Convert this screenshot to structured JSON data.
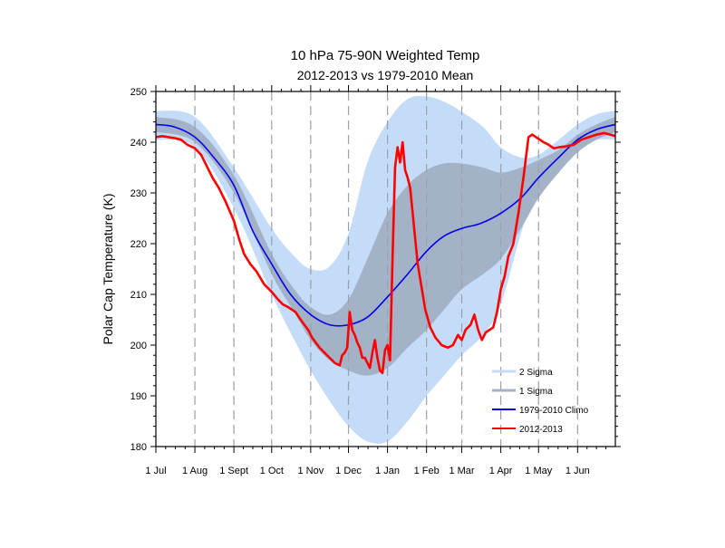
{
  "chart_data": {
    "type": "area",
    "title": "10 hPa 75-90N Weighted Temp",
    "subtitle": "2012-2013 vs 1979-2010 Mean",
    "xlabel": "",
    "ylabel": "Polar Cap Temperature (K)",
    "x_unit": "day of season (0 = 1 Jul)",
    "xlim": [
      0,
      365
    ],
    "ylim": [
      180,
      250
    ],
    "y_ticks": [
      180,
      190,
      200,
      210,
      220,
      230,
      240,
      250
    ],
    "x_ticks": [
      {
        "day": 0,
        "label": "1 Jul"
      },
      {
        "day": 31,
        "label": "1 Aug"
      },
      {
        "day": 62,
        "label": "1 Sept"
      },
      {
        "day": 92,
        "label": "1 Oct"
      },
      {
        "day": 123,
        "label": "1 Nov"
      },
      {
        "day": 153,
        "label": "1 Dec"
      },
      {
        "day": 184,
        "label": "1 Jan"
      },
      {
        "day": 215,
        "label": "1 Feb"
      },
      {
        "day": 243,
        "label": "1 Mar"
      },
      {
        "day": 274,
        "label": "1 Apr"
      },
      {
        "day": 304,
        "label": "1 May"
      },
      {
        "day": 335,
        "label": "1 Jun"
      }
    ],
    "grid": "vertical dashed at month starts",
    "legend_position": "bottom-right",
    "series": [
      {
        "name": "2 Sigma",
        "kind": "band",
        "color": "#c4dcf8",
        "x": [
          0,
          31,
          62,
          92,
          110,
          123,
          138,
          153,
          168,
          184,
          200,
          215,
          229,
          243,
          260,
          274,
          290,
          304,
          320,
          335,
          350,
          365
        ],
        "upper": [
          246.2,
          245,
          235,
          223,
          217.5,
          215,
          215.5,
          222,
          236,
          244,
          248.5,
          249,
          248,
          246,
          243,
          239,
          237,
          237.5,
          240.5,
          243.5,
          245.5,
          246.2
        ],
        "lower": [
          240.5,
          239,
          227,
          210,
          201,
          195,
          189,
          184,
          181,
          181,
          185,
          190,
          194,
          198,
          202,
          208,
          222,
          232,
          236.5,
          239,
          240.5,
          240.5
        ]
      },
      {
        "name": "1 Sigma",
        "kind": "band",
        "color": "#a4b2c8",
        "x": [
          0,
          31,
          62,
          92,
          110,
          123,
          138,
          153,
          168,
          184,
          200,
          215,
          229,
          243,
          260,
          274,
          290,
          304,
          320,
          335,
          350,
          365
        ],
        "upper": [
          245,
          243,
          233.5,
          218,
          211,
          207.5,
          206,
          209,
          217,
          226,
          231.5,
          234.5,
          235.8,
          235.8,
          235,
          234,
          235,
          236.5,
          238.5,
          241.5,
          243.5,
          245
        ],
        "lower": [
          242,
          240,
          230,
          214,
          206.5,
          201,
          197,
          195,
          194,
          195.5,
          199.5,
          203,
          207,
          211,
          214,
          217,
          223,
          229,
          234,
          238,
          240.5,
          242
        ]
      },
      {
        "name": "1979-2010 Climo",
        "kind": "line",
        "color": "#0000ee",
        "x": [
          0,
          15,
          31,
          46,
          62,
          77,
          92,
          107,
          123,
          138,
          153,
          168,
          184,
          200,
          215,
          229,
          243,
          258,
          274,
          290,
          304,
          320,
          335,
          350,
          365
        ],
        "values": [
          243.5,
          243,
          241,
          237,
          231.5,
          222.5,
          216,
          210,
          206,
          204,
          204,
          205.5,
          209.5,
          214,
          218.5,
          221.5,
          223,
          224,
          226,
          229,
          233,
          237,
          240.5,
          242.5,
          243.5
        ]
      },
      {
        "name": "2012-2013",
        "kind": "line",
        "color": "#ff0000",
        "x": [
          0,
          5,
          10,
          15,
          20,
          25,
          31,
          36,
          40,
          45,
          50,
          55,
          62,
          66,
          70,
          75,
          80,
          86,
          92,
          97,
          101,
          105,
          108,
          111,
          115,
          118,
          121,
          124,
          127,
          130,
          134,
          138,
          142,
          146,
          148,
          150,
          152,
          154,
          156,
          158,
          160,
          162,
          164,
          166,
          168,
          170,
          172,
          174,
          176,
          178,
          180,
          182,
          184,
          186,
          188,
          190,
          192,
          194,
          196,
          198,
          200,
          202,
          204,
          206,
          208,
          210,
          214,
          218,
          222,
          227,
          232,
          236,
          240,
          243,
          246,
          250,
          253,
          256,
          259,
          262,
          265,
          268,
          271,
          274,
          277,
          280,
          284,
          288,
          292,
          296,
          299,
          302,
          305,
          308,
          312,
          316,
          320,
          326,
          332,
          338,
          344,
          350,
          356,
          361,
          365
        ],
        "values": [
          241,
          241.2,
          241,
          240.8,
          240.5,
          239.5,
          238.8,
          237.5,
          235.5,
          233,
          231,
          228.5,
          224.5,
          221,
          218,
          216,
          214.5,
          212,
          210.5,
          209,
          208,
          207.5,
          207,
          206.5,
          205,
          204,
          203,
          201.5,
          200.5,
          199.5,
          198.5,
          197.5,
          196.5,
          196,
          198,
          198.5,
          199.5,
          206.5,
          203,
          202,
          200.5,
          199.5,
          197.5,
          197.5,
          196.5,
          195.5,
          198.5,
          201,
          197.5,
          195,
          194.5,
          199,
          200,
          197,
          217,
          235,
          239,
          236,
          240,
          234.5,
          233,
          231,
          226,
          221,
          216,
          213,
          207,
          203.5,
          201.5,
          200,
          199.5,
          200,
          202,
          201,
          203,
          204,
          206,
          203,
          201,
          202.5,
          203,
          203.5,
          206.5,
          211,
          213.5,
          217.5,
          220,
          226,
          233,
          241,
          241.5,
          241,
          240.5,
          240,
          239.5,
          238.8,
          239,
          239.2,
          239.5,
          240.5,
          241,
          241.5,
          241.8,
          241.5,
          241.2
        ]
      }
    ]
  }
}
